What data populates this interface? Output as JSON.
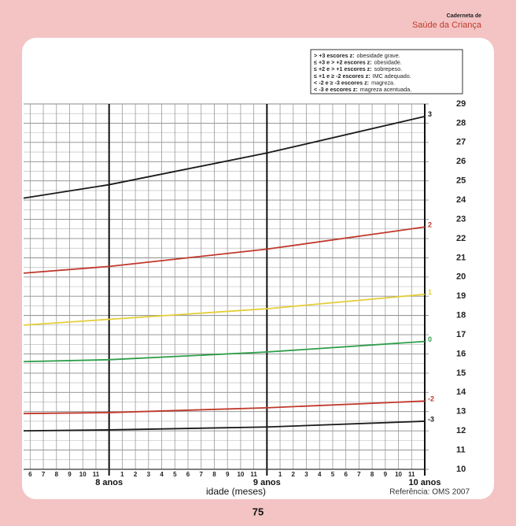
{
  "header": {
    "line1": "Caderneta de",
    "line2": "Saúde da Criança"
  },
  "legend_box": [
    {
      "bold": "> +3 escores z:",
      "text": "obesidade grave."
    },
    {
      "bold": "≤ +3 e > +2 escores z:",
      "text": "obesidade."
    },
    {
      "bold": "≤ +2 e > +1 escores z:",
      "text": "sobrepeso."
    },
    {
      "bold": "≤ +1 e ≥ -2 escores z:",
      "text": "IMC adequado."
    },
    {
      "bold": "< -2 e ≥ -3 escores z:",
      "text": "magreza."
    },
    {
      "bold": "< -3 e escores z:",
      "text": "magreza acentuada."
    }
  ],
  "chart_data": {
    "type": "line",
    "x_label": "idade (meses)",
    "reference": "Referência: OMS 2007",
    "x": [
      89.5,
      96,
      108,
      120
    ],
    "series": [
      {
        "name": "3",
        "color": "#1a1a1a",
        "values": [
          24.1,
          24.8,
          26.45,
          28.35
        ]
      },
      {
        "name": "2",
        "color": "#c0392b",
        "values": [
          20.2,
          20.55,
          21.45,
          22.6
        ]
      },
      {
        "name": "1",
        "color": "#e3cf3a",
        "values": [
          17.5,
          17.8,
          18.35,
          19.1
        ]
      },
      {
        "name": "0",
        "color": "#2e9e4a",
        "values": [
          15.6,
          15.7,
          16.1,
          16.65
        ]
      },
      {
        "name": "-2",
        "color": "#c0392b",
        "values": [
          12.9,
          12.95,
          13.2,
          13.55
        ]
      },
      {
        "name": "-3",
        "color": "#1a1a1a",
        "values": [
          12.0,
          12.05,
          12.2,
          12.5
        ]
      }
    ],
    "xlim": [
      89.5,
      120
    ],
    "ylim": [
      10,
      29
    ],
    "yticks": [
      10,
      11,
      12,
      13,
      14,
      15,
      16,
      17,
      18,
      19,
      20,
      21,
      22,
      23,
      24,
      25,
      26,
      27,
      28,
      29
    ],
    "xticks": [
      {
        "value": 90,
        "label": "6"
      },
      {
        "value": 91,
        "label": "7"
      },
      {
        "value": 92,
        "label": "8"
      },
      {
        "value": 93,
        "label": "9"
      },
      {
        "value": 94,
        "label": "10"
      },
      {
        "value": 95,
        "label": "11"
      },
      {
        "value": 97,
        "label": "1"
      },
      {
        "value": 98,
        "label": "2"
      },
      {
        "value": 99,
        "label": "3"
      },
      {
        "value": 100,
        "label": "4"
      },
      {
        "value": 101,
        "label": "5"
      },
      {
        "value": 102,
        "label": "6"
      },
      {
        "value": 103,
        "label": "7"
      },
      {
        "value": 104,
        "label": "8"
      },
      {
        "value": 105,
        "label": "9"
      },
      {
        "value": 106,
        "label": "10"
      },
      {
        "value": 107,
        "label": "11"
      },
      {
        "value": 109,
        "label": "1"
      },
      {
        "value": 110,
        "label": "2"
      },
      {
        "value": 111,
        "label": "3"
      },
      {
        "value": 112,
        "label": "4"
      },
      {
        "value": 113,
        "label": "5"
      },
      {
        "value": 114,
        "label": "6"
      },
      {
        "value": 115,
        "label": "7"
      },
      {
        "value": 116,
        "label": "8"
      },
      {
        "value": 117,
        "label": "9"
      },
      {
        "value": 118,
        "label": "10"
      },
      {
        "value": 119,
        "label": "11"
      }
    ],
    "x_major_ticks": [
      {
        "value": 96,
        "label": "8 anos"
      },
      {
        "value": 108,
        "label": "9 anos"
      },
      {
        "value": 120,
        "label": "10 anos"
      }
    ],
    "grid": true
  },
  "page_number": "75"
}
